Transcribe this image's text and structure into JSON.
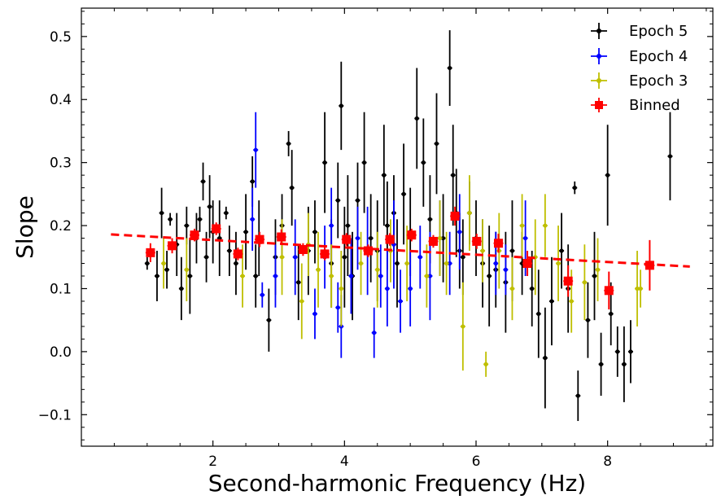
{
  "chart_data": {
    "type": "scatter",
    "xlabel": "Second-harmonic Frequency (Hz)",
    "ylabel": "Slope",
    "xlim": [
      0.0,
      9.6
    ],
    "ylim": [
      -0.15,
      0.545
    ],
    "xticks": [
      2,
      4,
      6,
      8
    ],
    "xtick_labels": [
      "2",
      "4",
      "6",
      "8"
    ],
    "yticks": [
      -0.1,
      0.0,
      0.1,
      0.2,
      0.3,
      0.4,
      0.5
    ],
    "ytick_labels": [
      "−0.1",
      "0.0",
      "0.1",
      "0.2",
      "0.3",
      "0.4",
      "0.5"
    ],
    "grid": false,
    "legend_position": "top-right",
    "legend": [
      "Epoch 5",
      "Epoch 4",
      "Epoch 3",
      "Binned"
    ],
    "colors": {
      "epoch5": "#000000",
      "epoch4": "#0000ff",
      "epoch3": "#bfbf00",
      "binned": "#ff0000",
      "fit": "#ff0000"
    },
    "series": [
      {
        "name": "Epoch 5",
        "color": "#000000",
        "x": [
          1.0,
          1.15,
          1.22,
          1.3,
          1.35,
          1.45,
          1.52,
          1.6,
          1.65,
          1.75,
          1.8,
          1.85,
          1.9,
          1.95,
          2.0,
          2.1,
          2.2,
          2.25,
          2.35,
          2.5,
          2.6,
          2.65,
          2.7,
          2.85,
          2.95,
          3.05,
          3.15,
          3.2,
          3.3,
          3.45,
          3.55,
          3.7,
          3.8,
          3.9,
          3.95,
          4.0,
          4.05,
          4.12,
          4.2,
          4.3,
          4.4,
          4.5,
          4.6,
          4.65,
          4.75,
          4.8,
          4.9,
          5.0,
          5.1,
          5.2,
          5.3,
          5.4,
          5.5,
          5.6,
          5.65,
          5.7,
          5.75,
          5.8,
          5.9,
          6.0,
          6.1,
          6.2,
          6.3,
          6.45,
          6.55,
          6.7,
          6.85,
          6.95,
          7.05,
          7.15,
          7.3,
          7.4,
          7.5,
          7.55,
          7.7,
          7.8,
          7.9,
          8.0,
          8.05,
          8.15,
          8.25,
          8.35,
          8.95
        ],
        "y": [
          0.14,
          0.12,
          0.22,
          0.13,
          0.21,
          0.17,
          0.1,
          0.2,
          0.12,
          0.18,
          0.21,
          0.27,
          0.15,
          0.23,
          0.19,
          0.18,
          0.22,
          0.16,
          0.14,
          0.19,
          0.27,
          0.12,
          0.18,
          0.05,
          0.15,
          0.2,
          0.33,
          0.26,
          0.11,
          0.16,
          0.19,
          0.3,
          0.14,
          0.24,
          0.39,
          0.15,
          0.2,
          0.12,
          0.24,
          0.3,
          0.18,
          0.16,
          0.28,
          0.2,
          0.22,
          0.14,
          0.25,
          0.19,
          0.37,
          0.3,
          0.21,
          0.33,
          0.18,
          0.45,
          0.28,
          0.22,
          0.16,
          0.15,
          0.22,
          0.18,
          0.14,
          0.12,
          0.13,
          0.11,
          0.16,
          0.14,
          0.1,
          0.06,
          -0.01,
          0.08,
          0.16,
          0.1,
          0.26,
          -0.07,
          0.05,
          0.12,
          -0.02,
          0.28,
          0.06,
          0.0,
          -0.02,
          0.0,
          0.31
        ],
        "yerr": [
          0.01,
          0.04,
          0.04,
          0.03,
          0.01,
          0.05,
          0.05,
          0.03,
          0.06,
          0.04,
          0.02,
          0.03,
          0.04,
          0.05,
          0.05,
          0.06,
          0.01,
          0.04,
          0.05,
          0.06,
          0.04,
          0.05,
          0.06,
          0.05,
          0.06,
          0.05,
          0.02,
          0.06,
          0.06,
          0.07,
          0.05,
          0.08,
          0.07,
          0.06,
          0.07,
          0.08,
          0.08,
          0.07,
          0.06,
          0.08,
          0.07,
          0.08,
          0.08,
          0.07,
          0.06,
          0.07,
          0.08,
          0.07,
          0.08,
          0.07,
          0.07,
          0.08,
          0.07,
          0.06,
          0.08,
          0.07,
          0.06,
          0.06,
          0.05,
          0.06,
          0.07,
          0.08,
          0.06,
          0.08,
          0.08,
          0.05,
          0.06,
          0.07,
          0.08,
          0.07,
          0.06,
          0.07,
          0.01,
          0.04,
          0.06,
          0.07,
          0.05,
          0.08,
          0.05,
          0.04,
          0.06,
          0.05,
          0.07
        ]
      },
      {
        "name": "Epoch 4",
        "color": "#0000ff",
        "x": [
          2.6,
          2.65,
          2.75,
          2.95,
          3.25,
          3.55,
          3.7,
          3.8,
          3.9,
          3.95,
          4.1,
          4.2,
          4.35,
          4.45,
          4.55,
          4.65,
          4.75,
          4.85,
          5.0,
          5.15,
          5.3,
          5.45,
          5.6,
          5.75,
          6.3,
          6.45,
          6.75
        ],
        "y": [
          0.21,
          0.32,
          0.09,
          0.12,
          0.15,
          0.06,
          0.15,
          0.2,
          0.07,
          0.04,
          0.12,
          0.18,
          0.16,
          0.03,
          0.12,
          0.1,
          0.17,
          0.08,
          0.1,
          0.15,
          0.12,
          0.18,
          0.14,
          0.19,
          0.14,
          0.13,
          0.18
        ],
        "yerr": [
          0.05,
          0.06,
          0.02,
          0.05,
          0.06,
          0.04,
          0.05,
          0.06,
          0.04,
          0.05,
          0.06,
          0.05,
          0.07,
          0.04,
          0.05,
          0.06,
          0.07,
          0.05,
          0.06,
          0.05,
          0.07,
          0.06,
          0.05,
          0.06,
          0.05,
          0.04,
          0.06
        ]
      },
      {
        "name": "Epoch 3",
        "color": "#bfbf00",
        "x": [
          1.25,
          1.6,
          2.45,
          3.05,
          3.35,
          3.45,
          3.6,
          3.8,
          3.95,
          4.25,
          4.5,
          4.7,
          4.95,
          5.25,
          5.45,
          5.55,
          5.8,
          5.9,
          6.1,
          6.15,
          6.35,
          6.55,
          6.7,
          6.9,
          7.05,
          7.25,
          7.45,
          7.65,
          7.85,
          8.45,
          8.5
        ],
        "y": [
          0.14,
          0.13,
          0.12,
          0.15,
          0.08,
          0.17,
          0.13,
          0.12,
          0.1,
          0.14,
          0.13,
          0.16,
          0.14,
          0.12,
          0.18,
          0.14,
          0.04,
          0.22,
          0.16,
          -0.02,
          0.16,
          0.1,
          0.2,
          0.15,
          0.2,
          0.14,
          0.08,
          0.11,
          0.13,
          0.1,
          0.1
        ],
        "yerr": [
          0.04,
          0.05,
          0.05,
          0.06,
          0.06,
          0.05,
          0.06,
          0.05,
          0.06,
          0.05,
          0.06,
          0.05,
          0.06,
          0.05,
          0.06,
          0.05,
          0.07,
          0.06,
          0.05,
          0.02,
          0.06,
          0.05,
          0.05,
          0.06,
          0.05,
          0.06,
          0.05,
          0.06,
          0.05,
          0.06,
          0.03
        ]
      },
      {
        "name": "Binned",
        "color": "#ff0000",
        "x": [
          1.05,
          1.38,
          1.72,
          2.05,
          2.38,
          2.71,
          3.04,
          3.37,
          3.7,
          4.03,
          4.36,
          4.69,
          5.02,
          5.35,
          5.68,
          6.01,
          6.34,
          6.78,
          7.4,
          8.02,
          8.64
        ],
        "y": [
          0.157,
          0.168,
          0.185,
          0.195,
          0.155,
          0.178,
          0.182,
          0.162,
          0.155,
          0.178,
          0.16,
          0.178,
          0.185,
          0.175,
          0.215,
          0.175,
          0.172,
          0.14,
          0.112,
          0.097,
          0.137
        ],
        "yerr": [
          0.015,
          0.012,
          0.01,
          0.01,
          0.01,
          0.012,
          0.012,
          0.01,
          0.01,
          0.01,
          0.01,
          0.01,
          0.01,
          0.01,
          0.015,
          0.012,
          0.015,
          0.02,
          0.025,
          0.03,
          0.04
        ]
      }
    ],
    "fit_line": {
      "x": [
        0.45,
        9.25
      ],
      "y": [
        0.186,
        0.135
      ]
    }
  }
}
